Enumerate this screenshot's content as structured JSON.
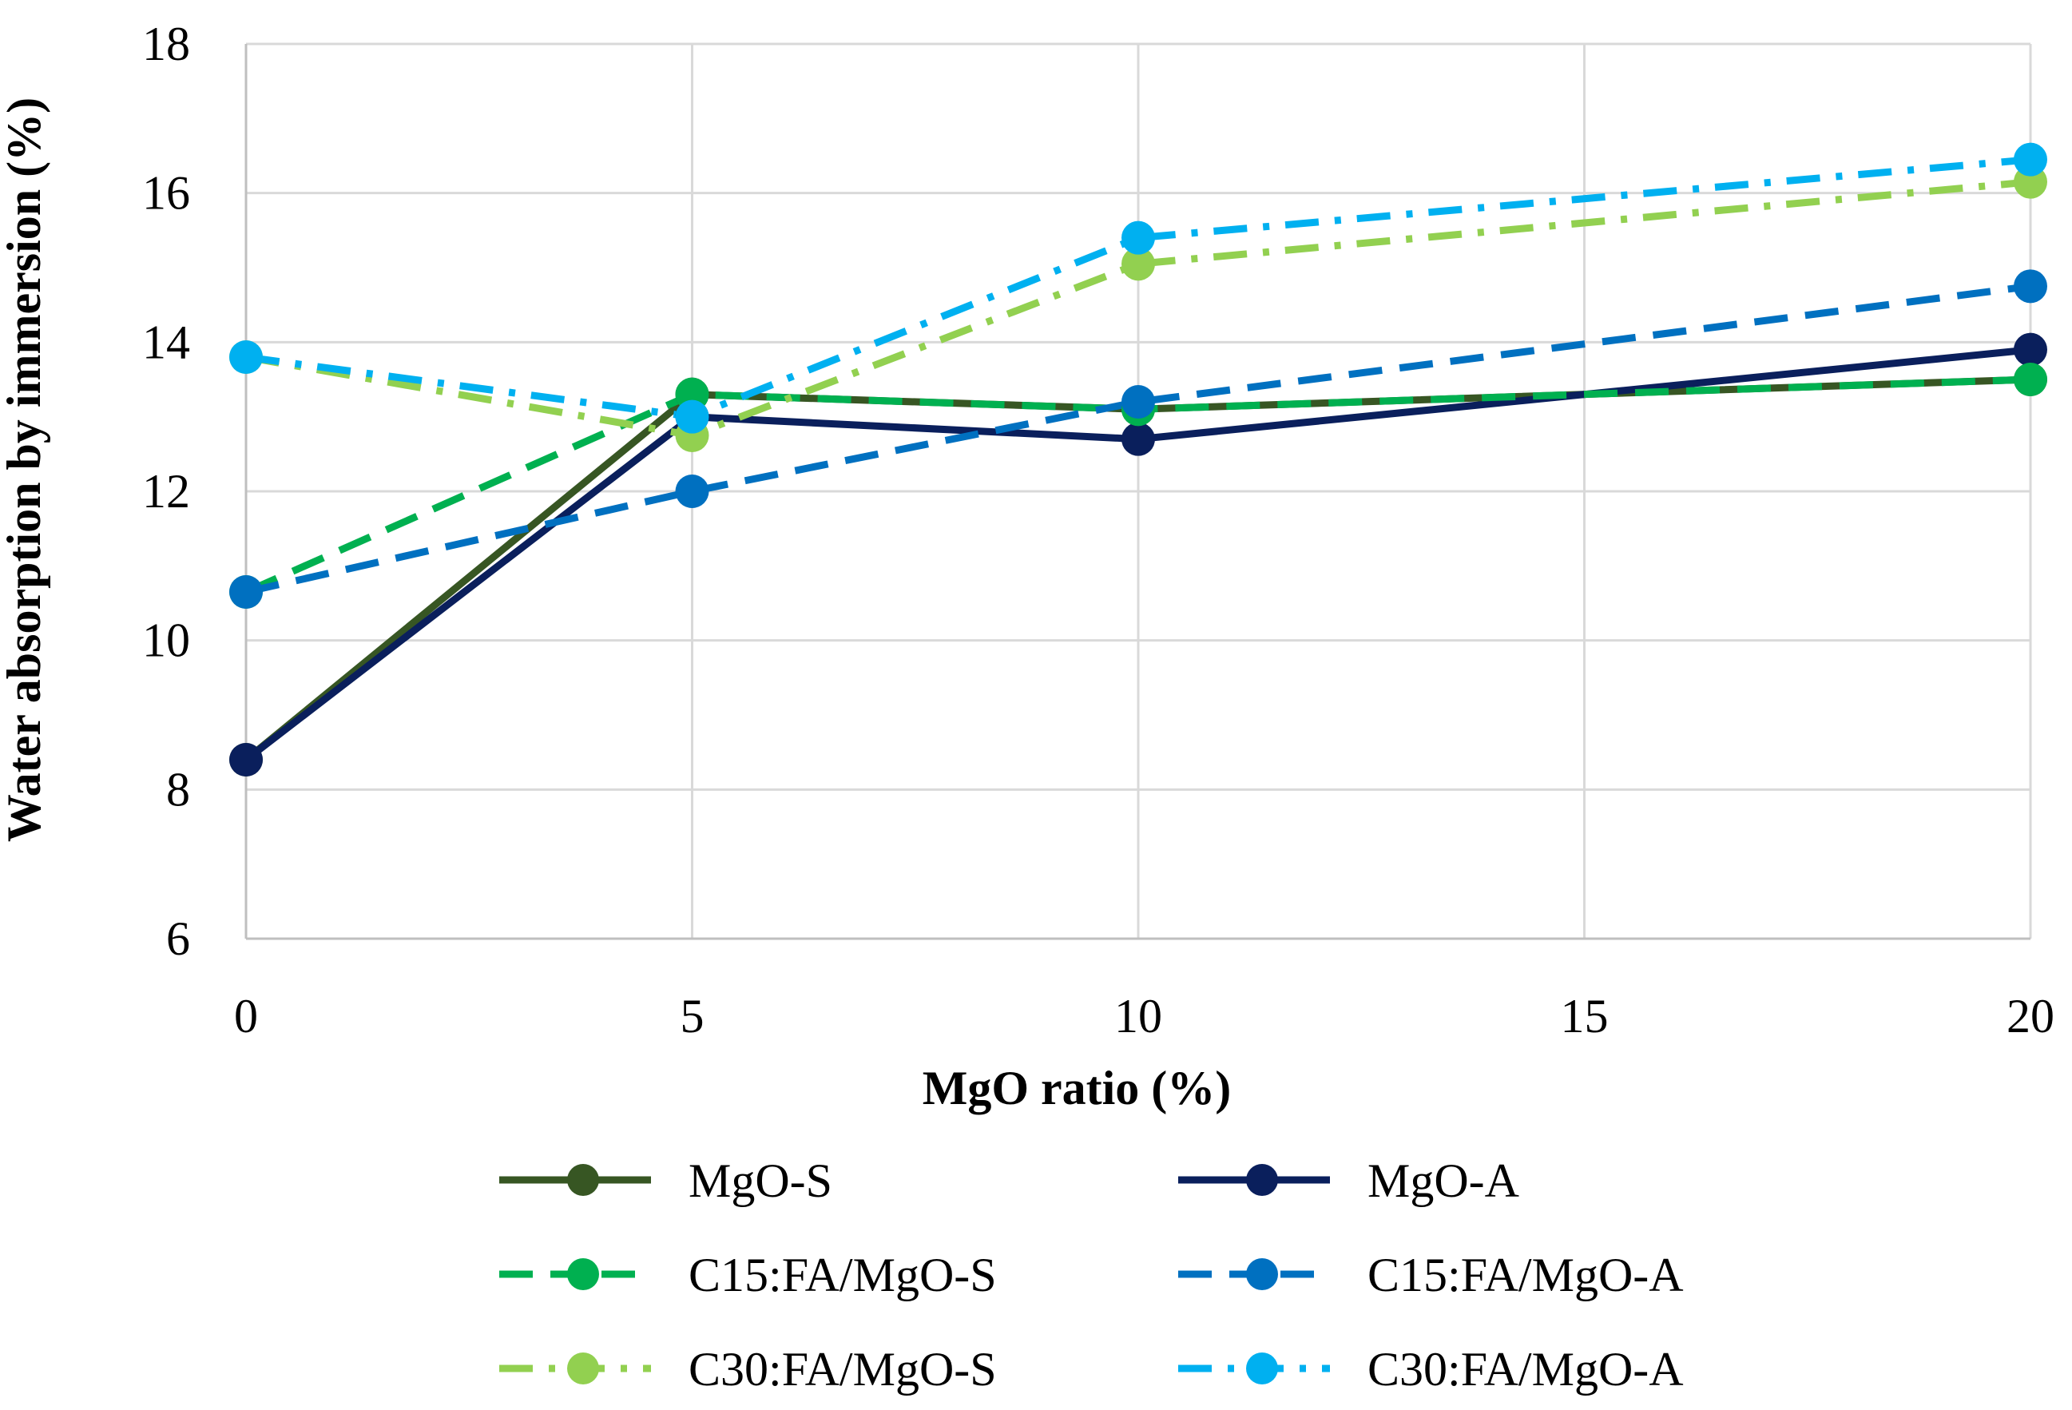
{
  "chart_data": {
    "type": "line",
    "title": "",
    "xlabel": "MgO ratio (%)",
    "ylabel": "Water absorption by immersion (%)",
    "x": [
      0,
      5,
      10,
      20
    ],
    "xlim": [
      0,
      20
    ],
    "ylim": [
      6,
      18
    ],
    "xticks": [
      "0",
      "5",
      "10",
      "15",
      "20"
    ],
    "xtick_values": [
      0,
      5,
      10,
      15,
      20
    ],
    "yticks": [
      "6",
      "8",
      "10",
      "12",
      "14",
      "16",
      "18"
    ],
    "ytick_values": [
      6,
      8,
      10,
      12,
      14,
      16,
      18
    ],
    "grid": true,
    "legend_position": "bottom",
    "series": [
      {
        "name": "MgO-S",
        "values": [
          8.4,
          13.3,
          13.1,
          13.5
        ],
        "color": "#375623",
        "dash": "solid"
      },
      {
        "name": "MgO-A",
        "values": [
          8.4,
          13.0,
          12.7,
          13.9
        ],
        "color": "#0a1f5c",
        "dash": "solid"
      },
      {
        "name": "C15:FA/MgO-S",
        "values": [
          10.65,
          13.3,
          13.1,
          13.5
        ],
        "color": "#00b050",
        "dash": "dash"
      },
      {
        "name": "C15:FA/MgO-A",
        "values": [
          10.65,
          12.0,
          13.2,
          14.75
        ],
        "color": "#0070c0",
        "dash": "dash"
      },
      {
        "name": "C30:FA/MgO-S",
        "values": [
          13.8,
          12.75,
          15.05,
          16.15
        ],
        "color": "#92d050",
        "dash": "dashdot"
      },
      {
        "name": "C30:FA/MgO-A",
        "values": [
          13.8,
          13.0,
          15.4,
          16.45
        ],
        "color": "#00b0f0",
        "dash": "dashdot"
      }
    ]
  }
}
